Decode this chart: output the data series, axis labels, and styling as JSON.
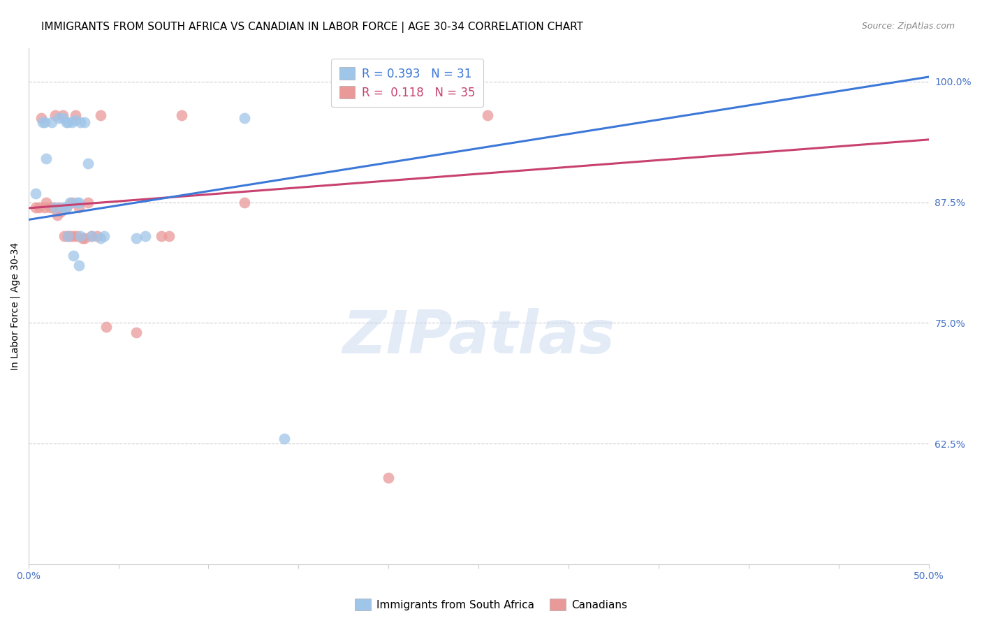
{
  "title": "IMMIGRANTS FROM SOUTH AFRICA VS CANADIAN IN LABOR FORCE | AGE 30-34 CORRELATION CHART",
  "source": "Source: ZipAtlas.com",
  "ylabel": "In Labor Force | Age 30-34",
  "xlim": [
    0.0,
    0.5
  ],
  "ylim": [
    0.5,
    1.035
  ],
  "ytick_vals": [
    0.625,
    0.75,
    0.875,
    1.0
  ],
  "ytick_labels": [
    "62.5%",
    "75.0%",
    "87.5%",
    "100.0%"
  ],
  "xtick_vals": [
    0.0,
    0.05,
    0.1,
    0.15,
    0.2,
    0.25,
    0.3,
    0.35,
    0.4,
    0.45,
    0.5
  ],
  "xtick_labels": [
    "0.0%",
    "",
    "",
    "",
    "",
    "",
    "",
    "",
    "",
    "",
    "50.0%"
  ],
  "blue_label": "Immigrants from South Africa",
  "pink_label": "Canadians",
  "blue_R": "0.393",
  "blue_N": "31",
  "pink_R": "0.118",
  "pink_N": "35",
  "blue_scatter_color": "#9fc5e8",
  "pink_scatter_color": "#ea9999",
  "blue_line_color": "#3c78d8",
  "pink_line_color": "#c84170",
  "blue_points_x": [
    0.004,
    0.008,
    0.009,
    0.01,
    0.013,
    0.015,
    0.017,
    0.019,
    0.019,
    0.021,
    0.021,
    0.022,
    0.022,
    0.023,
    0.024,
    0.025,
    0.026,
    0.027,
    0.028,
    0.028,
    0.029,
    0.029,
    0.031,
    0.033,
    0.035,
    0.04,
    0.042,
    0.06,
    0.065,
    0.12,
    0.142
  ],
  "blue_points_y": [
    0.884,
    0.958,
    0.958,
    0.92,
    0.958,
    0.87,
    0.962,
    0.87,
    0.962,
    0.87,
    0.958,
    0.84,
    0.958,
    0.875,
    0.958,
    0.82,
    0.96,
    0.875,
    0.81,
    0.875,
    0.84,
    0.958,
    0.958,
    0.915,
    0.84,
    0.838,
    0.84,
    0.838,
    0.84,
    0.962,
    0.63
  ],
  "pink_points_x": [
    0.004,
    0.006,
    0.007,
    0.009,
    0.01,
    0.012,
    0.014,
    0.015,
    0.016,
    0.017,
    0.018,
    0.019,
    0.02,
    0.021,
    0.022,
    0.023,
    0.024,
    0.025,
    0.026,
    0.027,
    0.028,
    0.03,
    0.031,
    0.033,
    0.035,
    0.038,
    0.04,
    0.043,
    0.06,
    0.074,
    0.078,
    0.085,
    0.12,
    0.2,
    0.255
  ],
  "pink_points_y": [
    0.87,
    0.87,
    0.962,
    0.87,
    0.875,
    0.87,
    0.87,
    0.965,
    0.862,
    0.87,
    0.865,
    0.965,
    0.84,
    0.87,
    0.84,
    0.84,
    0.875,
    0.84,
    0.965,
    0.84,
    0.87,
    0.838,
    0.838,
    0.875,
    0.84,
    0.84,
    0.965,
    0.746,
    0.74,
    0.84,
    0.84,
    0.965,
    0.875,
    0.59,
    0.965
  ],
  "blue_trend_x0": 0.0,
  "blue_trend_x1": 0.5,
  "blue_trend_y0": 0.857,
  "blue_trend_y1": 1.005,
  "pink_trend_x0": 0.0,
  "pink_trend_x1": 0.5,
  "pink_trend_y0": 0.869,
  "pink_trend_y1": 0.94,
  "watermark_text": "ZIPatlas",
  "bg_color": "#ffffff",
  "grid_color": "#cccccc",
  "title_fontsize": 11,
  "tick_fontsize": 10,
  "tick_color": "#4472c4",
  "source_fontsize": 9
}
